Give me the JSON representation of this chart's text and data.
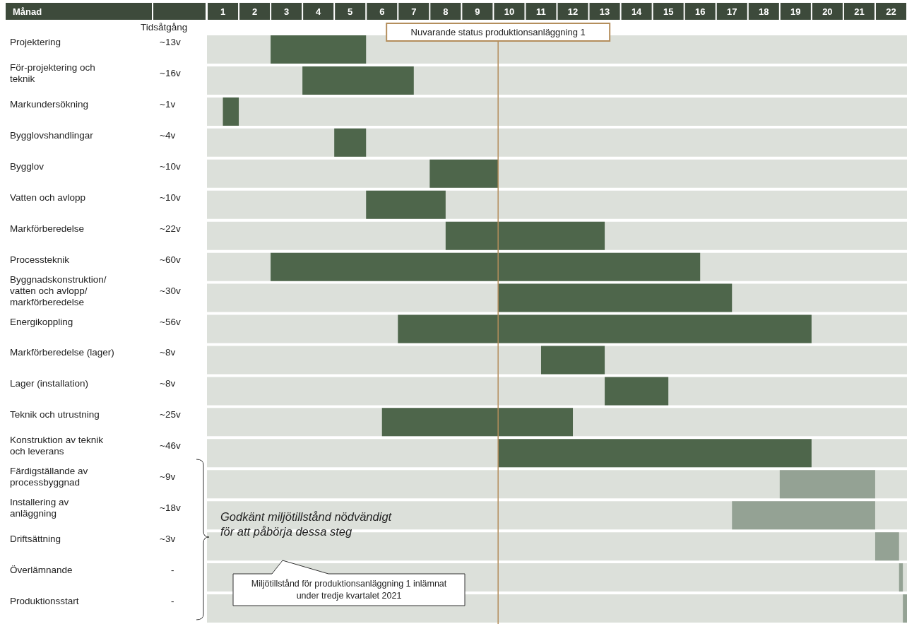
{
  "chart_data": {
    "type": "bar",
    "orientation": "horizontal",
    "xlabel": "Månad",
    "categories": [
      "Projektering",
      "För-projektering och teknik",
      "Markundersökning",
      "Bygglovshandlingar",
      "Bygglov",
      "Vatten och avlopp",
      "Markförberedelse",
      "Processteknik",
      "Byggnadskonstruktion/ vatten och avlopp/ markförberedelse",
      "Energikoppling",
      "Markförberedelse (lager)",
      "Lager (installation)",
      "Teknik och utrustning",
      "Konstruktion av teknik och leverans",
      "Färdigställande av processbyggnad",
      "Installering av anläggning",
      "Driftsättning",
      "Överlämnande",
      "Produktionsstart"
    ],
    "base": [
      2,
      3,
      0.5,
      4,
      7,
      5,
      7.5,
      2,
      9.15,
      6,
      10.5,
      12.5,
      5.5,
      9.15,
      18,
      16.5,
      21,
      21.75,
      21.87
    ],
    "values": [
      3,
      3.5,
      0.5,
      1,
      2.15,
      2.5,
      5,
      13.5,
      7.35,
      13,
      2,
      2,
      6,
      9.85,
      3,
      4.5,
      0.75,
      0.12,
      0.13
    ],
    "colors": [
      "#4e664b",
      "#4e664b",
      "#4e664b",
      "#4e664b",
      "#4e664b",
      "#4e664b",
      "#4e664b",
      "#4e664b",
      "#4e664b",
      "#4e664b",
      "#4e664b",
      "#4e664b",
      "#4e664b",
      "#4e664b",
      "#94a294",
      "#94a294",
      "#94a294",
      "#94a294",
      "#94a294"
    ],
    "xlim": [
      0,
      22
    ],
    "xticks": [
      {
        "value": 0.5,
        "label": "1"
      },
      {
        "value": 1.5,
        "label": "2"
      },
      {
        "value": 2.5,
        "label": "3"
      },
      {
        "value": 3.5,
        "label": "4"
      },
      {
        "value": 4.5,
        "label": "5"
      },
      {
        "value": 5.5,
        "label": "6"
      },
      {
        "value": 6.5,
        "label": "7"
      },
      {
        "value": 7.5,
        "label": "8"
      },
      {
        "value": 8.5,
        "label": "9"
      },
      {
        "value": 9.5,
        "label": "10"
      },
      {
        "value": 10.5,
        "label": "11"
      },
      {
        "value": 11.5,
        "label": "12"
      },
      {
        "value": 12.5,
        "label": "13"
      },
      {
        "value": 13.5,
        "label": "14"
      },
      {
        "value": 14.5,
        "label": "15"
      },
      {
        "value": 15.5,
        "label": "16"
      },
      {
        "value": 16.5,
        "label": "17"
      },
      {
        "value": 17.5,
        "label": "18"
      },
      {
        "value": 18.5,
        "label": "19"
      },
      {
        "value": 19.5,
        "label": "20"
      },
      {
        "value": 20.5,
        "label": "21"
      },
      {
        "value": 21.5,
        "label": "22"
      }
    ],
    "ref_lines": [
      {
        "axis": "x",
        "value": 9.15,
        "label": "Nuvarande status produktionsanläggning 1",
        "color": "#b48e5c"
      }
    ],
    "annotations": [
      "Tidsåtgång",
      "Godkänt miljötillstånd nödvändigt för att påbörja dessa steg",
      "Miljötillstånd för produktionsanläggning 1 inlämnat under tredje kvartalet 2021",
      "~13v",
      "~16v",
      "~1v",
      "~4v",
      "~10v",
      "~10v",
      "~22v",
      "~60v",
      "~30v",
      "~56v",
      "~8v",
      "~8v",
      "~25v",
      "~46v",
      "~9v",
      "~18v",
      "~3v",
      "-",
      "-"
    ]
  }
}
